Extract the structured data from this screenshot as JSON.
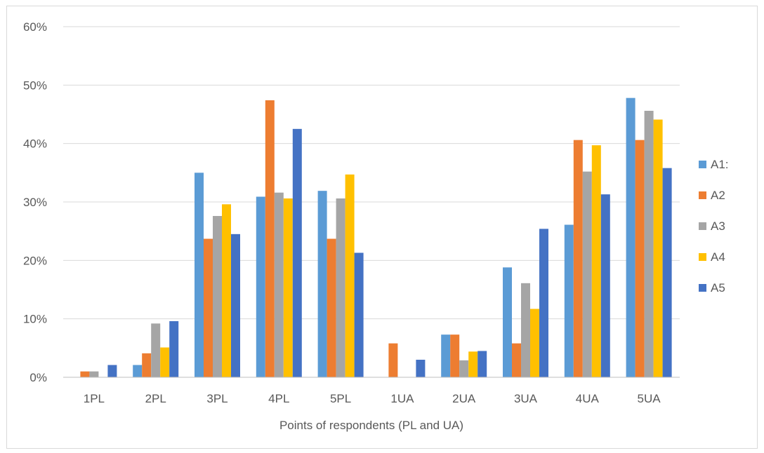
{
  "chart_data": {
    "type": "bar",
    "xlabel": "Points of respondents (PL and UA)",
    "ylabel": "",
    "ylim": [
      0,
      0.6
    ],
    "yticks": [
      "0%",
      "10%",
      "20%",
      "30%",
      "40%",
      "50%",
      "60%"
    ],
    "categories": [
      "1PL",
      "2PL",
      "3PL",
      "4PL",
      "5PL",
      "1UA",
      "2UA",
      "3UA",
      "4UA",
      "5UA"
    ],
    "series": [
      {
        "name": "A1:",
        "color": "#5b9bd5",
        "values": [
          0.0,
          0.021,
          0.35,
          0.309,
          0.319,
          0.0,
          0.073,
          0.188,
          0.261,
          0.478
        ]
      },
      {
        "name": "A2",
        "color": "#ed7d31",
        "values": [
          0.01,
          0.041,
          0.237,
          0.474,
          0.237,
          0.058,
          0.073,
          0.058,
          0.406,
          0.406
        ]
      },
      {
        "name": "A3",
        "color": "#a5a5a5",
        "values": [
          0.01,
          0.092,
          0.276,
          0.316,
          0.306,
          0.0,
          0.029,
          0.161,
          0.352,
          0.456
        ]
      },
      {
        "name": "A4",
        "color": "#ffc000",
        "values": [
          0.0,
          0.051,
          0.296,
          0.306,
          0.347,
          0.0,
          0.044,
          0.117,
          0.397,
          0.441
        ]
      },
      {
        "name": "A5",
        "color": "#4472c4",
        "values": [
          0.021,
          0.096,
          0.245,
          0.425,
          0.213,
          0.03,
          0.045,
          0.254,
          0.313,
          0.358
        ]
      }
    ],
    "grid": true,
    "legend": "right"
  }
}
